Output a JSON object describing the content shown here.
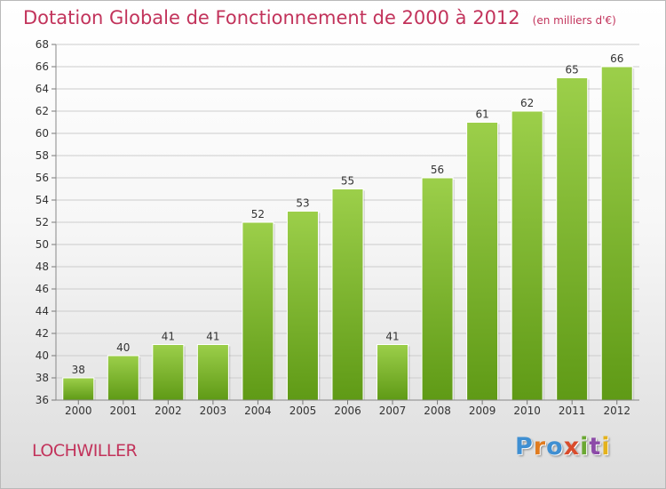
{
  "header": {
    "title": "Dotation Globale de Fonctionnement de 2000 à 2012",
    "subtitle": "(en milliers d'€)"
  },
  "footer": {
    "commune": "LOCHWILLER",
    "logo": "Proxiti",
    "logo_colors": [
      "#3f8fd2",
      "#e07b1f",
      "#3f8fd2",
      "#d94b2b",
      "#6aa832",
      "#8c4aa8",
      "#e4b21b"
    ]
  },
  "chart_data": {
    "type": "bar",
    "categories": [
      "2000",
      "2001",
      "2002",
      "2003",
      "2004",
      "2005",
      "2006",
      "2007",
      "2008",
      "2009",
      "2010",
      "2011",
      "2012"
    ],
    "values": [
      38,
      40,
      41,
      41,
      52,
      53,
      55,
      41,
      56,
      61,
      62,
      65,
      66
    ],
    "data_labels": [
      "38",
      "40",
      "41",
      "41",
      "52",
      "53",
      "55",
      "41",
      "56",
      "61",
      "62",
      "65",
      "66"
    ],
    "ylim": [
      36,
      68
    ],
    "yticks": [
      "36",
      "38",
      "40",
      "42",
      "44",
      "46",
      "48",
      "50",
      "52",
      "54",
      "56",
      "58",
      "60",
      "62",
      "64",
      "66",
      "68"
    ],
    "grid": true,
    "bar_color_top": "#9ccf4a",
    "bar_color_bottom": "#5f9a16",
    "grid_color": "#cccccc"
  }
}
